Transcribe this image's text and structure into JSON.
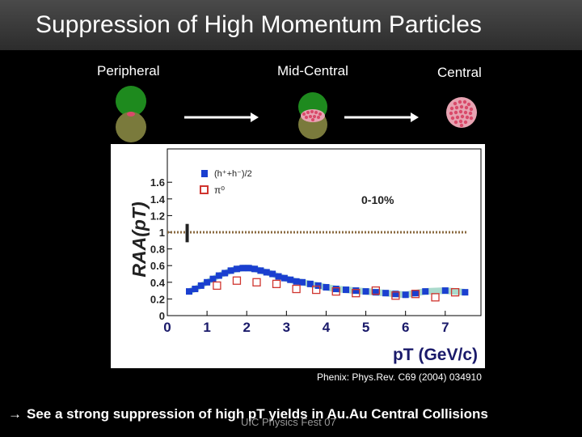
{
  "slide": {
    "title": "Suppression of High Momentum Particles",
    "labels": {
      "peripheral": "Peripheral",
      "mid_central": "Mid-Central",
      "central": "Central"
    },
    "reference": "Phenix: Phys.Rev. C69 (2004) 034910",
    "footer_arrow": "→",
    "footer": "See a strong suppression of high pT yields in Au.Au Central Collisions",
    "watermark": "UIC Physics Fest 07",
    "colors": {
      "green": "#1e8a1e",
      "olive": "#7a7a3c",
      "pink": "#d94a6a",
      "band": "#9bd3c3",
      "blue": "#1a3fd0",
      "red_open": "#d0352f",
      "dotted": "#8a6a40"
    }
  },
  "chart_data": {
    "type": "scatter",
    "ylabel": "RAA(pT)",
    "xlabel": "pT (GeV/c)",
    "annotation": "0-10%",
    "xlim": [
      0,
      7.9
    ],
    "ylim": [
      0,
      2.0
    ],
    "x_ticks": [
      0,
      1,
      2,
      3,
      4,
      5,
      6,
      7
    ],
    "y_ticks": [
      0,
      0.2,
      0.4,
      0.6,
      0.8,
      1,
      1.2,
      1.4,
      1.6
    ],
    "reference_line": 1.0,
    "legend": [
      {
        "name": "(h⁺+h⁻)/2",
        "marker": "filled-square"
      },
      {
        "name": "π⁰",
        "marker": "open-square"
      }
    ],
    "series": [
      {
        "name": "(h⁺+h⁻)/2",
        "x": [
          0.55,
          0.7,
          0.85,
          1.0,
          1.15,
          1.3,
          1.45,
          1.6,
          1.75,
          1.9,
          2.05,
          2.2,
          2.35,
          2.5,
          2.65,
          2.8,
          2.95,
          3.1,
          3.25,
          3.4,
          3.6,
          3.8,
          4.0,
          4.25,
          4.5,
          4.75,
          5.0,
          5.25,
          5.5,
          5.75,
          6.0,
          6.25,
          6.5,
          7.0,
          7.5
        ],
        "y": [
          0.29,
          0.32,
          0.36,
          0.4,
          0.44,
          0.48,
          0.51,
          0.54,
          0.56,
          0.57,
          0.57,
          0.56,
          0.54,
          0.52,
          0.5,
          0.47,
          0.45,
          0.43,
          0.41,
          0.4,
          0.38,
          0.36,
          0.34,
          0.32,
          0.31,
          0.3,
          0.29,
          0.28,
          0.27,
          0.26,
          0.25,
          0.27,
          0.29,
          0.3,
          0.28
        ]
      },
      {
        "name": "π⁰",
        "x": [
          1.25,
          1.75,
          2.25,
          2.75,
          3.25,
          3.75,
          4.25,
          4.75,
          5.25,
          5.75,
          6.25,
          6.75,
          7.25
        ],
        "y": [
          0.36,
          0.42,
          0.4,
          0.38,
          0.32,
          0.31,
          0.29,
          0.27,
          0.3,
          0.24,
          0.26,
          0.22,
          0.28
        ]
      }
    ]
  }
}
